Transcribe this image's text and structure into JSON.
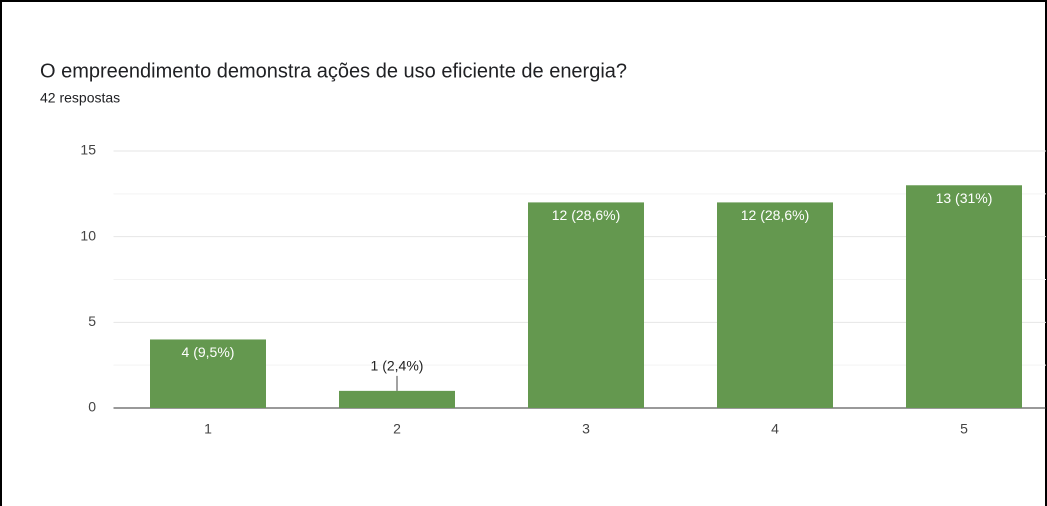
{
  "chart_data": {
    "type": "bar",
    "title": "O empreendimento demonstra ações de uso eficiente de energia?",
    "subtitle": "42 respostas",
    "categories": [
      "1",
      "2",
      "3",
      "4",
      "5"
    ],
    "values": [
      4,
      1,
      12,
      12,
      13
    ],
    "value_labels": [
      "4 (9,5%)",
      "1 (2,4%)",
      "12 (28,6%)",
      "12 (28,6%)",
      "13 (31%)"
    ],
    "color": "#64984f",
    "ylim": [
      0,
      15
    ],
    "yticks": [
      0,
      5,
      10,
      15
    ],
    "minor_yticks": [
      2.5,
      7.5,
      12.5
    ],
    "grid": true
  }
}
